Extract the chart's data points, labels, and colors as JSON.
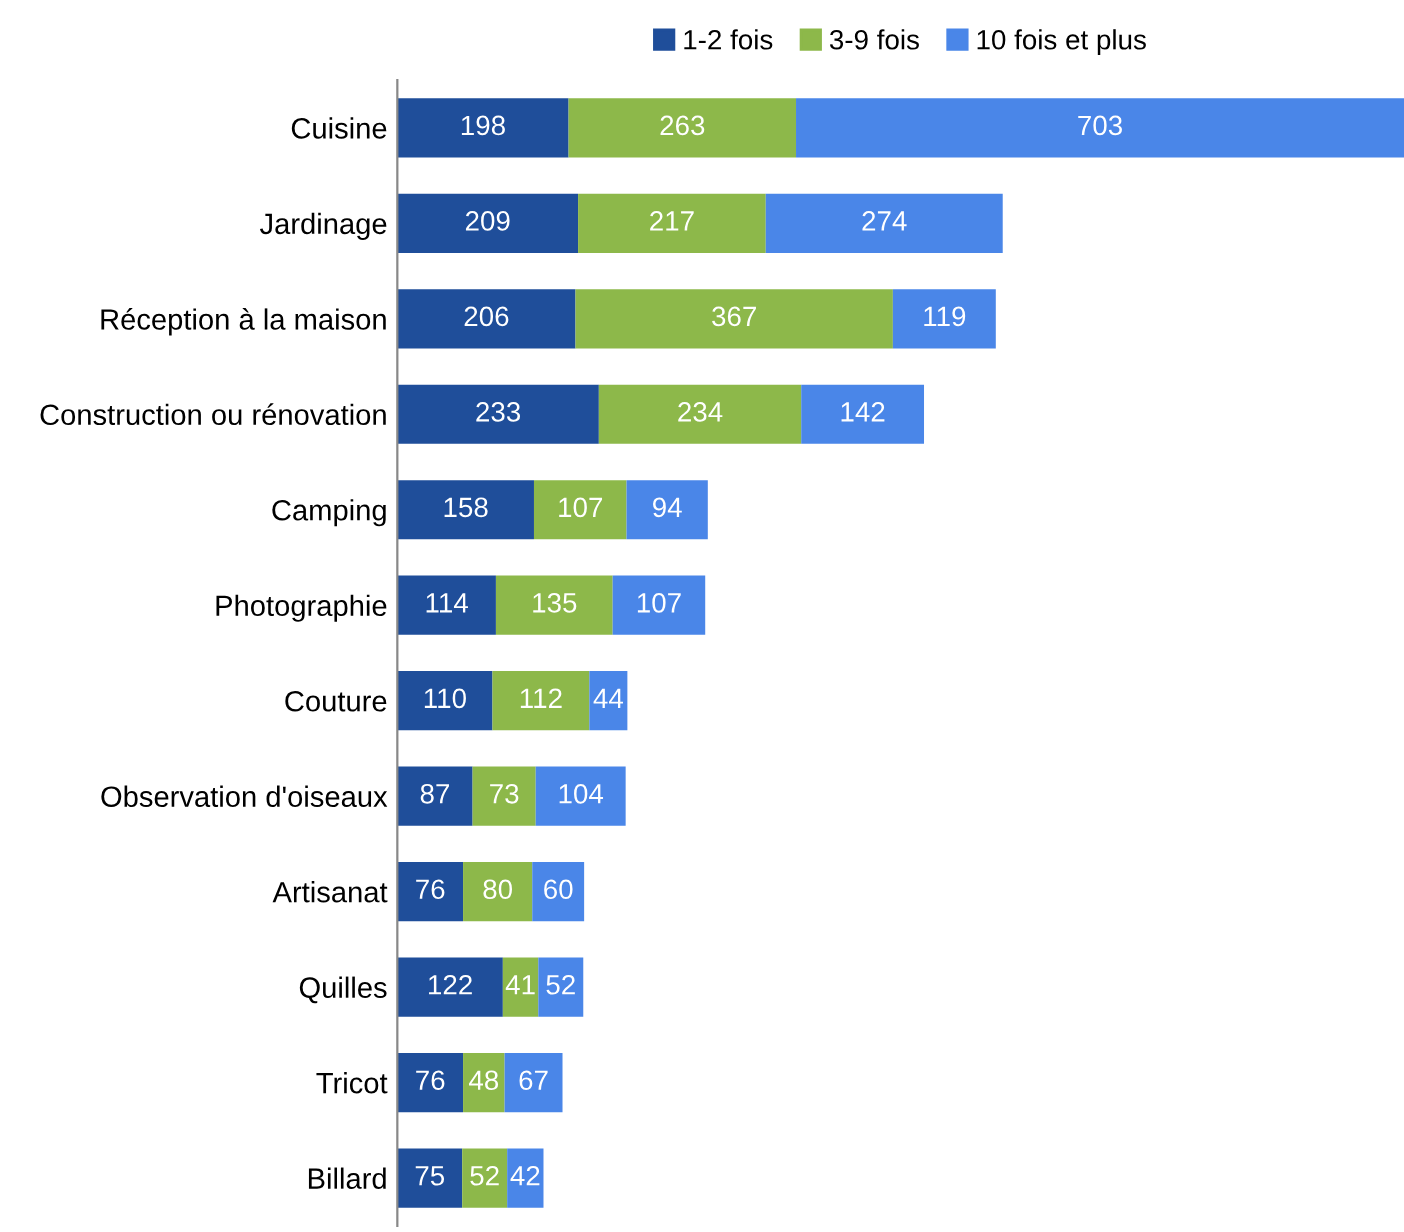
{
  "chart_data": {
    "type": "bar",
    "orientation": "horizontal",
    "stacked": true,
    "data_labels": true,
    "legend": "top",
    "grid": false,
    "tick_labels": "y",
    "categories": [
      "Cuisine",
      "Jardinage",
      "Réception à la maison",
      "Construction ou rénovation",
      "Camping",
      "Photographie",
      "Couture",
      "Observation d'oiseaux",
      "Artisanat",
      "Quilles",
      "Tricot",
      "Billard"
    ],
    "series": [
      {
        "name": "1-2 fois",
        "color": "#1f4e9a",
        "values": [
          198,
          209,
          206,
          233,
          158,
          114,
          110,
          87,
          76,
          122,
          76,
          75
        ]
      },
      {
        "name": "3-9 fois",
        "color": "#8db84a",
        "values": [
          263,
          217,
          367,
          234,
          107,
          135,
          112,
          73,
          80,
          41,
          48,
          52
        ]
      },
      {
        "name": "10 fois et plus",
        "color": "#4a86e8",
        "values": [
          703,
          274,
          119,
          142,
          94,
          107,
          44,
          104,
          60,
          52,
          67,
          42
        ]
      }
    ]
  }
}
